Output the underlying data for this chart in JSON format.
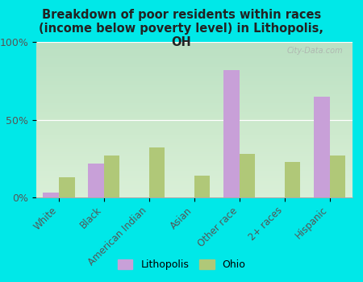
{
  "categories": [
    "White",
    "Black",
    "American Indian",
    "Asian",
    "Other race",
    "2+ races",
    "Hispanic"
  ],
  "lithopolis": [
    3,
    22,
    0,
    0,
    82,
    0,
    65
  ],
  "ohio": [
    13,
    27,
    32,
    14,
    28,
    23,
    27
  ],
  "lithopolis_color": "#c8a0d8",
  "ohio_color": "#b0c878",
  "title": "Breakdown of poor residents within races\n(income below poverty level) in Lithopolis,\nOH",
  "title_fontsize": 10.5,
  "title_fontweight": "bold",
  "ylim": [
    0,
    100
  ],
  "yticks": [
    0,
    50,
    100
  ],
  "yticklabels": [
    "0%",
    "50%",
    "100%"
  ],
  "background_color": "#00e8e8",
  "watermark": "City-Data.com",
  "bar_width": 0.35,
  "legend_labels": [
    "Lithopolis",
    "Ohio"
  ]
}
